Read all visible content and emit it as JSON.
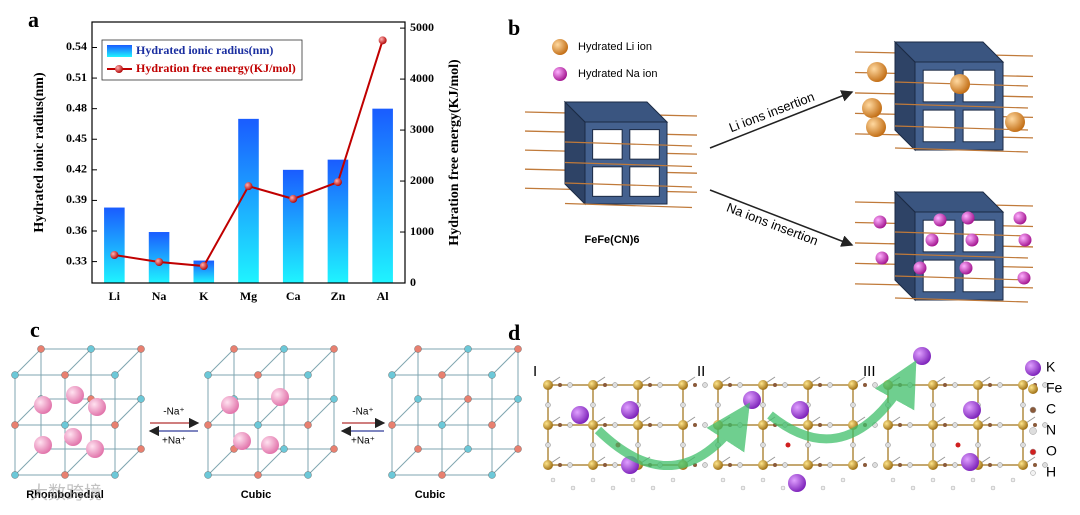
{
  "panel_labels": [
    "a",
    "b",
    "c",
    "d"
  ],
  "chart_data": {
    "type": "bar",
    "categories": [
      "Li",
      "Na",
      "K",
      "Mg",
      "Ca",
      "Zn",
      "Al"
    ],
    "series": [
      {
        "name": "Hydrated ionic radius(nm)",
        "color": "#1a6cff",
        "values": [
          0.383,
          0.359,
          0.331,
          0.47,
          0.42,
          0.43,
          0.48
        ]
      },
      {
        "name": "Hydration free energy(KJ/mol)",
        "color": "#c00000",
        "type": "line",
        "axis": "y2",
        "values": [
          549,
          412,
          333,
          1900,
          1650,
          1980,
          4760
        ]
      }
    ],
    "ylabel": "Hydrated ionic radius(nm)",
    "y2label": "Hydration free energy(KJ/mol)",
    "ylim": [
      0.309,
      0.565
    ],
    "yticks": [
      0.33,
      0.36,
      0.39,
      0.42,
      0.45,
      0.48,
      0.51,
      0.54
    ],
    "y2lim": [
      0,
      5120
    ],
    "y2ticks": [
      0,
      1000,
      2000,
      3000,
      4000,
      5000
    ],
    "legend": "upper left"
  },
  "panel_b": {
    "legend": [
      "Hydrated Li ion",
      "Hydrated Na ion"
    ],
    "arrows": [
      "Li ions insertion",
      "Na ions insertion"
    ],
    "compound": "FeFe(CN)6"
  },
  "panel_c": {
    "arrows": [
      [
        "-Na⁺",
        "+Na⁺"
      ],
      [
        "-Na⁺",
        "+Na⁺"
      ]
    ],
    "phases": [
      "Rhombohedral",
      "Cubic",
      "Cubic"
    ]
  },
  "panel_d": {
    "stages": [
      "I",
      "II",
      "III"
    ],
    "legend": [
      "K",
      "Fe",
      "C",
      "N",
      "O",
      "H"
    ]
  },
  "watermark": "大数跨境"
}
